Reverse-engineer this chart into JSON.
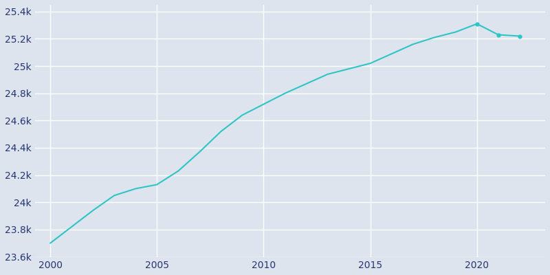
{
  "years": [
    2000,
    2001,
    2002,
    2003,
    2004,
    2005,
    2006,
    2007,
    2008,
    2009,
    2010,
    2011,
    2012,
    2013,
    2014,
    2015,
    2016,
    2017,
    2018,
    2019,
    2020,
    2021,
    2022
  ],
  "population": [
    23700,
    23820,
    23940,
    24050,
    24100,
    24130,
    24230,
    24370,
    24520,
    24640,
    24720,
    24800,
    24870,
    24940,
    24980,
    25020,
    25090,
    25160,
    25210,
    25250,
    25310,
    25230,
    25220
  ],
  "line_color": "#2dc5c5",
  "marker_color": "#2dc5c5",
  "bg_color": "#dde4ee",
  "grid_color": "#ffffff",
  "text_color": "#253470",
  "ylim": [
    23600,
    25450
  ],
  "yticks": [
    23600,
    23800,
    24000,
    24200,
    24400,
    24600,
    24800,
    25000,
    25200,
    25400
  ],
  "ytick_labels": [
    "23.6k",
    "23.8k",
    "24k",
    "24.2k",
    "24.4k",
    "24.6k",
    "24.8k",
    "25k",
    "25.2k",
    "25.4k"
  ],
  "xticks": [
    2000,
    2005,
    2010,
    2015,
    2020
  ],
  "xlim": [
    1999.3,
    2023.2
  ],
  "marker_years": [
    2020,
    2021,
    2022
  ],
  "figsize": [
    8.0,
    4.0
  ],
  "dpi": 100
}
